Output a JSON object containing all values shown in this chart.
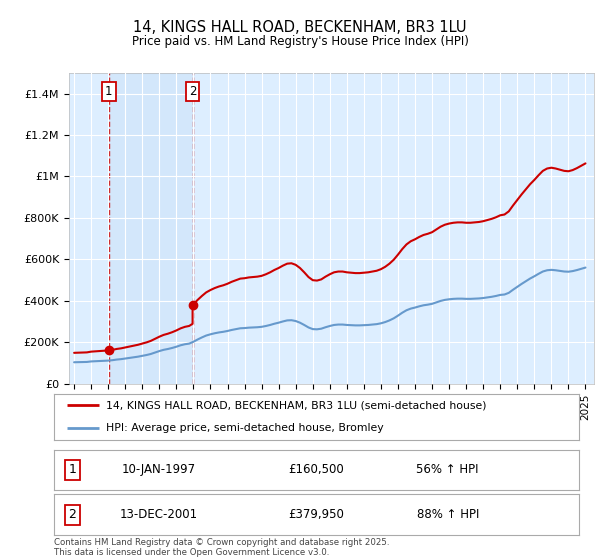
{
  "title": "14, KINGS HALL ROAD, BECKENHAM, BR3 1LU",
  "subtitle": "Price paid vs. HM Land Registry's House Price Index (HPI)",
  "legend_line1": "14, KINGS HALL ROAD, BECKENHAM, BR3 1LU (semi-detached house)",
  "legend_line2": "HPI: Average price, semi-detached house, Bromley",
  "footnote": "Contains HM Land Registry data © Crown copyright and database right 2025.\nThis data is licensed under the Open Government Licence v3.0.",
  "sale1_date": "10-JAN-1997",
  "sale1_price": "£160,500",
  "sale1_hpi": "56% ↑ HPI",
  "sale1_year": 1997.04,
  "sale1_value": 160500,
  "sale2_date": "13-DEC-2001",
  "sale2_price": "£379,950",
  "sale2_hpi": "88% ↑ HPI",
  "sale2_year": 2001.95,
  "sale2_value": 379950,
  "price_line_color": "#cc0000",
  "hpi_line_color": "#6699cc",
  "background_color": "#ddeeff",
  "fig_bg_color": "#ffffff",
  "vline_color": "#cc0000",
  "ylim": [
    0,
    1500000
  ],
  "xlim": [
    1994.7,
    2025.5
  ],
  "hpi_data": [
    [
      1995.0,
      103000
    ],
    [
      1995.25,
      103500
    ],
    [
      1995.5,
      104000
    ],
    [
      1995.75,
      104500
    ],
    [
      1996.0,
      107000
    ],
    [
      1996.25,
      108000
    ],
    [
      1996.5,
      109000
    ],
    [
      1996.75,
      110000
    ],
    [
      1997.0,
      111000
    ],
    [
      1997.25,
      113000
    ],
    [
      1997.5,
      116000
    ],
    [
      1997.75,
      118000
    ],
    [
      1998.0,
      121000
    ],
    [
      1998.25,
      124000
    ],
    [
      1998.5,
      127000
    ],
    [
      1998.75,
      130000
    ],
    [
      1999.0,
      134000
    ],
    [
      1999.25,
      138000
    ],
    [
      1999.5,
      143000
    ],
    [
      1999.75,
      150000
    ],
    [
      2000.0,
      157000
    ],
    [
      2000.25,
      163000
    ],
    [
      2000.5,
      167000
    ],
    [
      2000.75,
      172000
    ],
    [
      2001.0,
      178000
    ],
    [
      2001.25,
      185000
    ],
    [
      2001.5,
      190000
    ],
    [
      2001.75,
      193000
    ],
    [
      2002.0,
      202000
    ],
    [
      2002.25,
      213000
    ],
    [
      2002.5,
      223000
    ],
    [
      2002.75,
      232000
    ],
    [
      2003.0,
      238000
    ],
    [
      2003.25,
      243000
    ],
    [
      2003.5,
      247000
    ],
    [
      2003.75,
      250000
    ],
    [
      2004.0,
      254000
    ],
    [
      2004.25,
      259000
    ],
    [
      2004.5,
      263000
    ],
    [
      2004.75,
      267000
    ],
    [
      2005.0,
      268000
    ],
    [
      2005.25,
      270000
    ],
    [
      2005.5,
      271000
    ],
    [
      2005.75,
      272000
    ],
    [
      2006.0,
      274000
    ],
    [
      2006.25,
      278000
    ],
    [
      2006.5,
      283000
    ],
    [
      2006.75,
      289000
    ],
    [
      2007.0,
      294000
    ],
    [
      2007.25,
      300000
    ],
    [
      2007.5,
      305000
    ],
    [
      2007.75,
      306000
    ],
    [
      2008.0,
      302000
    ],
    [
      2008.25,
      294000
    ],
    [
      2008.5,
      283000
    ],
    [
      2008.75,
      271000
    ],
    [
      2009.0,
      263000
    ],
    [
      2009.25,
      262000
    ],
    [
      2009.5,
      265000
    ],
    [
      2009.75,
      272000
    ],
    [
      2010.0,
      278000
    ],
    [
      2010.25,
      283000
    ],
    [
      2010.5,
      285000
    ],
    [
      2010.75,
      285000
    ],
    [
      2011.0,
      283000
    ],
    [
      2011.25,
      282000
    ],
    [
      2011.5,
      281000
    ],
    [
      2011.75,
      281000
    ],
    [
      2012.0,
      282000
    ],
    [
      2012.25,
      283000
    ],
    [
      2012.5,
      285000
    ],
    [
      2012.75,
      287000
    ],
    [
      2013.0,
      291000
    ],
    [
      2013.25,
      297000
    ],
    [
      2013.5,
      305000
    ],
    [
      2013.75,
      315000
    ],
    [
      2014.0,
      328000
    ],
    [
      2014.25,
      342000
    ],
    [
      2014.5,
      354000
    ],
    [
      2014.75,
      362000
    ],
    [
      2015.0,
      367000
    ],
    [
      2015.25,
      373000
    ],
    [
      2015.5,
      378000
    ],
    [
      2015.75,
      381000
    ],
    [
      2016.0,
      385000
    ],
    [
      2016.25,
      392000
    ],
    [
      2016.5,
      399000
    ],
    [
      2016.75,
      404000
    ],
    [
      2017.0,
      407000
    ],
    [
      2017.25,
      409000
    ],
    [
      2017.5,
      410000
    ],
    [
      2017.75,
      410000
    ],
    [
      2018.0,
      409000
    ],
    [
      2018.25,
      409000
    ],
    [
      2018.5,
      410000
    ],
    [
      2018.75,
      411000
    ],
    [
      2019.0,
      413000
    ],
    [
      2019.25,
      416000
    ],
    [
      2019.5,
      419000
    ],
    [
      2019.75,
      423000
    ],
    [
      2020.0,
      428000
    ],
    [
      2020.25,
      430000
    ],
    [
      2020.5,
      438000
    ],
    [
      2020.75,
      453000
    ],
    [
      2021.0,
      467000
    ],
    [
      2021.25,
      481000
    ],
    [
      2021.5,
      494000
    ],
    [
      2021.75,
      507000
    ],
    [
      2022.0,
      518000
    ],
    [
      2022.25,
      530000
    ],
    [
      2022.5,
      541000
    ],
    [
      2022.75,
      547000
    ],
    [
      2023.0,
      549000
    ],
    [
      2023.25,
      547000
    ],
    [
      2023.5,
      544000
    ],
    [
      2023.75,
      541000
    ],
    [
      2024.0,
      540000
    ],
    [
      2024.25,
      543000
    ],
    [
      2024.5,
      548000
    ],
    [
      2024.75,
      554000
    ],
    [
      2025.0,
      560000
    ]
  ],
  "yticks": [
    0,
    200000,
    400000,
    600000,
    800000,
    1000000,
    1200000,
    1400000
  ],
  "ytick_labels": [
    "£0",
    "£200K",
    "£400K",
    "£600K",
    "£800K",
    "£1M",
    "£1.2M",
    "£1.4M"
  ],
  "xticks": [
    1995,
    1996,
    1997,
    1998,
    1999,
    2000,
    2001,
    2002,
    2003,
    2004,
    2005,
    2006,
    2007,
    2008,
    2009,
    2010,
    2011,
    2012,
    2013,
    2014,
    2015,
    2016,
    2017,
    2018,
    2019,
    2020,
    2021,
    2022,
    2023,
    2024,
    2025
  ]
}
